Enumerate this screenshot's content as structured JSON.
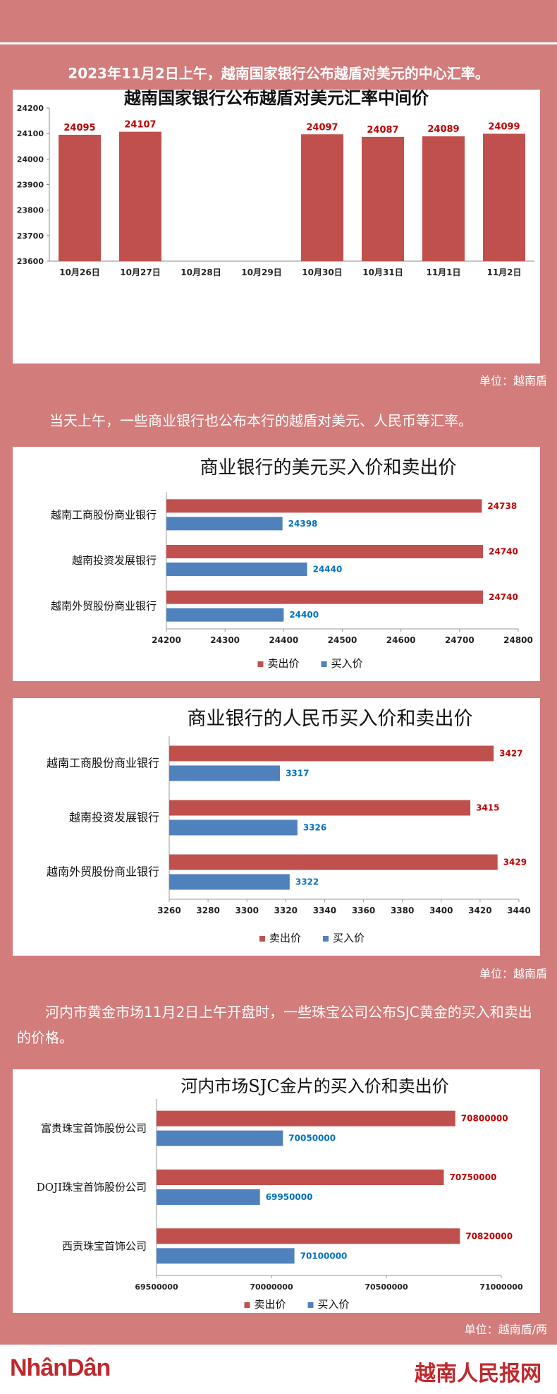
{
  "colors": {
    "sell": "#c0504d",
    "buy": "#4f81bd",
    "sell_label": "#c00000",
    "buy_label": "#0070c0",
    "background": "#d27c7b"
  },
  "intro_text": "2023年11月2日上午，越南国家银行公布越盾对美元的中心汇率。",
  "unit_1": "单位：越南盾",
  "text_2": "当天上午，一些商业银行也公布本行的越盾对美元、人民币等汇率。",
  "unit_2": "单位：越南盾",
  "text_3": "河内市黄金市场11月2日上午开盘时，一些珠宝公司公布SJC黄金的买入和卖出的价格。",
  "unit_3": "单位：越南盾/两",
  "footer": {
    "left_logo": "NhânDân",
    "right_logo": "越南人民报网"
  },
  "chart_data": [
    {
      "type": "bar",
      "title": "越南国家银行公布越盾对美元汇率中间价",
      "categories": [
        "10月26日",
        "10月27日",
        "10月28日",
        "10月29日",
        "10月30日",
        "10月31日",
        "11月1日",
        "11月2日"
      ],
      "values": [
        24095,
        24107,
        null,
        null,
        24097,
        24087,
        24089,
        24099
      ],
      "ylim": [
        23600,
        24200
      ],
      "yticks": [
        23600,
        23700,
        23800,
        23900,
        24000,
        24100,
        24200
      ],
      "grid": false
    },
    {
      "type": "bar",
      "orientation": "horizontal",
      "title": "商业银行的美元买入价和卖出价",
      "categories": [
        "越南工商股份商业银行",
        "越南投资发展银行",
        "越南外贸股份商业银行"
      ],
      "series": [
        {
          "name": "卖出价",
          "values": [
            24738,
            24740,
            24740
          ]
        },
        {
          "name": "买入价",
          "values": [
            24398,
            24440,
            24400
          ]
        }
      ],
      "xlim": [
        24200,
        24800
      ],
      "xticks": [
        24200,
        24300,
        24400,
        24500,
        24600,
        24700,
        24800
      ],
      "legend": "bottom"
    },
    {
      "type": "bar",
      "orientation": "horizontal",
      "title": "商业银行的人民币买入价和卖出价",
      "categories": [
        "越南工商股份商业银行",
        "越南投资发展银行",
        "越南外贸股份商业银行"
      ],
      "series": [
        {
          "name": "卖出价",
          "values": [
            3427,
            3415,
            3429
          ]
        },
        {
          "name": "买入价",
          "values": [
            3317,
            3326,
            3322
          ]
        }
      ],
      "xlim": [
        3260,
        3440
      ],
      "xticks": [
        3260,
        3280,
        3300,
        3320,
        3340,
        3360,
        3380,
        3400,
        3420,
        3440
      ],
      "legend": "bottom"
    },
    {
      "type": "bar",
      "orientation": "horizontal",
      "title": "河内市场SJC金片的买入价和卖出价",
      "categories": [
        "富贵珠宝首饰股份公司",
        "DOJI珠宝首饰股份公司",
        "西贡珠宝首饰公司"
      ],
      "series": [
        {
          "name": "卖出价",
          "values": [
            70800000,
            70750000,
            70820000
          ]
        },
        {
          "name": "买入价",
          "values": [
            70050000,
            69950000,
            70100000
          ]
        }
      ],
      "xlim": [
        69500000,
        71000000
      ],
      "xticks": [
        69500000,
        70000000,
        70500000,
        71000000
      ],
      "legend": "bottom"
    }
  ]
}
